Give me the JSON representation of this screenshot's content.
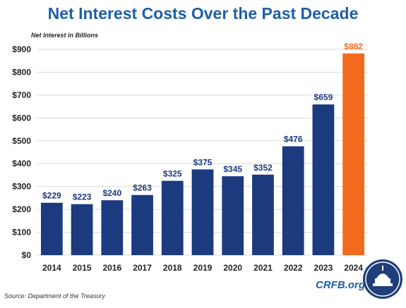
{
  "header": {
    "title": "Net Interest Costs Over the Past Decade"
  },
  "footer": {
    "source": "Source: Department of the Treasury",
    "brand": "CRFB.org"
  },
  "chart_data": {
    "type": "bar",
    "title": "Net Interest Costs Over the Past Decade",
    "ylabel": "Net Interest in Billions",
    "xlabel": "",
    "categories": [
      "2014",
      "2015",
      "2016",
      "2017",
      "2018",
      "2019",
      "2020",
      "2021",
      "2022",
      "2023",
      "2024"
    ],
    "values": [
      229,
      223,
      240,
      263,
      325,
      375,
      345,
      352,
      476,
      659,
      882
    ],
    "data_labels": [
      "$229",
      "$223",
      "$240",
      "$263",
      "$325",
      "$375",
      "$345",
      "$352",
      "$476",
      "$659",
      "$882"
    ],
    "ylim": [
      0,
      900
    ],
    "yticks": [
      0,
      100,
      200,
      300,
      400,
      500,
      600,
      700,
      800,
      900
    ],
    "ytick_labels": [
      "$0",
      "$100",
      "$200",
      "$300",
      "$400",
      "$500",
      "$600",
      "$700",
      "$800",
      "$900"
    ],
    "grid": true,
    "legend": "none",
    "colors": {
      "default": "#1c3a7e",
      "highlight": "#f26a1b",
      "grid": "#d9d9d9",
      "axis_text": "#222222"
    },
    "highlight_index": 10
  }
}
